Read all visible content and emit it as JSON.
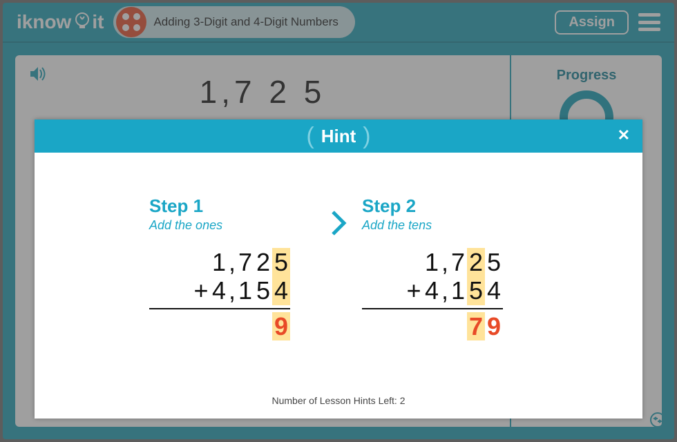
{
  "header": {
    "logo_text_1": "iknow",
    "logo_text_2": "it",
    "title": "Adding 3-Digit and 4-Digit Numbers",
    "assign_label": "Assign"
  },
  "main": {
    "big_number": "1,7 2 5",
    "progress_label": "Progress"
  },
  "modal": {
    "title": "Hint",
    "hints_left": "Number of Lesson Hints Left: 2",
    "steps": [
      {
        "title": "Step 1",
        "subtitle": "Add the ones",
        "row1": [
          {
            "t": " ",
            "c": "plus",
            "hl": false
          },
          {
            "t": "1",
            "c": "dg",
            "hl": false
          },
          {
            "t": ",",
            "c": "comma",
            "hl": false
          },
          {
            "t": "7",
            "c": "dg",
            "hl": false
          },
          {
            "t": "2",
            "c": "dg",
            "hl": false
          },
          {
            "t": "5",
            "c": "dg",
            "hl": true
          }
        ],
        "row2": [
          {
            "t": "+",
            "c": "plus",
            "hl": false
          },
          {
            "t": "4",
            "c": "dg",
            "hl": false
          },
          {
            "t": ",",
            "c": "comma",
            "hl": false
          },
          {
            "t": "1",
            "c": "dg",
            "hl": false
          },
          {
            "t": "5",
            "c": "dg",
            "hl": false
          },
          {
            "t": "4",
            "c": "dg",
            "hl": true
          }
        ],
        "answer": [
          {
            "t": " ",
            "c": "plus"
          },
          {
            "t": " ",
            "c": "dg"
          },
          {
            "t": " ",
            "c": "comma"
          },
          {
            "t": " ",
            "c": "dg"
          },
          {
            "t": " ",
            "c": "dg"
          },
          {
            "t": "9",
            "c": "dg",
            "hl": true,
            "ans": true
          }
        ]
      },
      {
        "title": "Step 2",
        "subtitle": "Add the tens",
        "row1": [
          {
            "t": " ",
            "c": "plus",
            "hl": false
          },
          {
            "t": "1",
            "c": "dg",
            "hl": false
          },
          {
            "t": ",",
            "c": "comma",
            "hl": false
          },
          {
            "t": "7",
            "c": "dg",
            "hl": false
          },
          {
            "t": "2",
            "c": "dg",
            "hl": true
          },
          {
            "t": "5",
            "c": "dg",
            "hl": false
          }
        ],
        "row2": [
          {
            "t": "+",
            "c": "plus",
            "hl": false
          },
          {
            "t": "4",
            "c": "dg",
            "hl": false
          },
          {
            "t": ",",
            "c": "comma",
            "hl": false
          },
          {
            "t": "1",
            "c": "dg",
            "hl": false
          },
          {
            "t": "5",
            "c": "dg",
            "hl": true
          },
          {
            "t": "4",
            "c": "dg",
            "hl": false
          }
        ],
        "answer": [
          {
            "t": " ",
            "c": "plus"
          },
          {
            "t": " ",
            "c": "dg"
          },
          {
            "t": " ",
            "c": "comma"
          },
          {
            "t": " ",
            "c": "dg"
          },
          {
            "t": "7",
            "c": "dg",
            "hl": true,
            "ans": true
          },
          {
            "t": "9",
            "c": "dg",
            "ans": true
          }
        ]
      }
    ]
  },
  "colors": {
    "brand": "#1a9db3",
    "accent": "#e84a27",
    "highlight": "#ffe39a",
    "modal_header": "#1aa6c6"
  }
}
